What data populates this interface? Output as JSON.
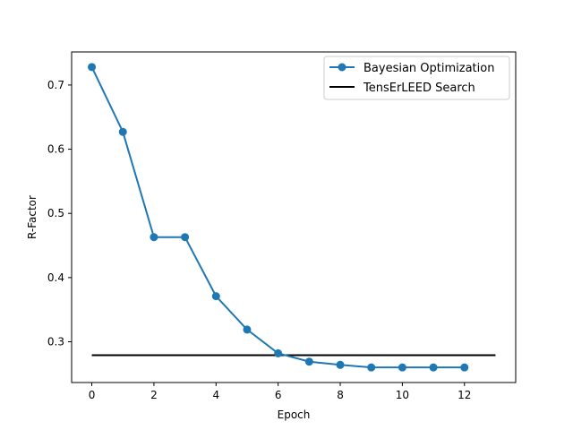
{
  "chart_data": {
    "type": "line",
    "xlabel": "Epoch",
    "ylabel": "R-Factor",
    "xlim": [
      -0.65,
      13.65
    ],
    "ylim": [
      0.2365,
      0.7515
    ],
    "xticks": [
      0,
      2,
      4,
      6,
      8,
      10,
      12
    ],
    "yticks": [
      0.3,
      0.4,
      0.5,
      0.6,
      0.7
    ],
    "xtick_labels": [
      "0",
      "2",
      "4",
      "6",
      "8",
      "10",
      "12"
    ],
    "ytick_labels": [
      "0.3",
      "0.4",
      "0.5",
      "0.6",
      "0.7"
    ],
    "legend_position": "top-right",
    "grid": false,
    "series": [
      {
        "name": "Bayesian Optimization",
        "color": "#1f77b4",
        "marker": "circle",
        "x": [
          0,
          1,
          2,
          3,
          4,
          5,
          6,
          7,
          8,
          9,
          10,
          11,
          12
        ],
        "y": [
          0.728,
          0.627,
          0.463,
          0.463,
          0.371,
          0.319,
          0.282,
          0.269,
          0.264,
          0.26,
          0.26,
          0.26,
          0.26
        ]
      },
      {
        "name": "TensErLEED Search",
        "color": "#000000",
        "marker": "none",
        "x": [
          0,
          13
        ],
        "y": [
          0.279,
          0.279
        ]
      }
    ]
  }
}
